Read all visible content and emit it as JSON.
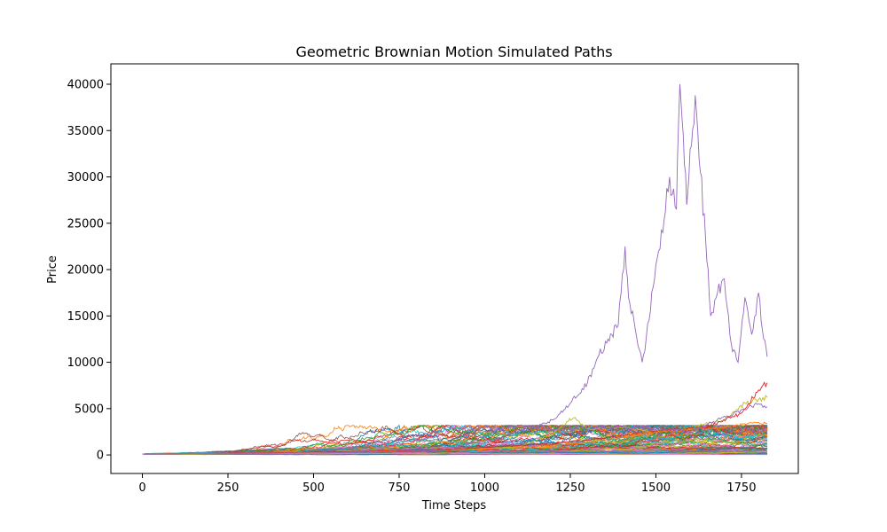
{
  "chart_data": {
    "type": "line",
    "title": "Geometric Brownian Motion Simulated Paths",
    "xlabel": "Time Steps",
    "ylabel": "Price",
    "xlim": [
      -92,
      1916
    ],
    "ylim": [
      -2000,
      42200
    ],
    "xticks": [
      0,
      250,
      500,
      750,
      1000,
      1250,
      1500,
      1750
    ],
    "yticks": [
      0,
      5000,
      10000,
      15000,
      20000,
      25000,
      30000,
      35000,
      40000
    ],
    "grid": false,
    "legend": "none",
    "series_colors": [
      "#1f77b4",
      "#ff7f0e",
      "#2ca02c",
      "#d62728",
      "#9467bd",
      "#8c564b",
      "#e377c2",
      "#7f7f7f",
      "#bcbd22",
      "#17becf"
    ],
    "num_paths": 100,
    "num_steps": 1825,
    "start_value": 100,
    "highlighted_paths": [
      {
        "color": "#9467bd",
        "x": [
          0,
          150,
          300,
          450,
          600,
          750,
          900,
          1000,
          1050,
          1100,
          1150,
          1200,
          1250,
          1300,
          1330,
          1360,
          1390,
          1410,
          1420,
          1440,
          1460,
          1480,
          1500,
          1520,
          1540,
          1560,
          1570,
          1580,
          1590,
          1600,
          1615,
          1630,
          1645,
          1660,
          1680,
          1700,
          1720,
          1740,
          1760,
          1780,
          1800,
          1815,
          1825
        ],
        "y": [
          100,
          180,
          250,
          320,
          380,
          520,
          800,
          1500,
          1900,
          2600,
          3000,
          3800,
          5600,
          7800,
          10500,
          12500,
          14000,
          22500,
          17000,
          13500,
          10000,
          14500,
          20500,
          24000,
          30000,
          26500,
          40000,
          34500,
          27000,
          33000,
          38800,
          30500,
          23500,
          15000,
          17500,
          19000,
          12000,
          10000,
          17000,
          13000,
          17500,
          12500,
          10600
        ]
      },
      {
        "color": "#bcbd22",
        "x": [
          0,
          300,
          600,
          900,
          1100,
          1200,
          1240,
          1260,
          1300,
          1400,
          1500,
          1600,
          1700,
          1760,
          1800,
          1825
        ],
        "y": [
          100,
          180,
          300,
          500,
          900,
          2200,
          3600,
          4000,
          2800,
          3000,
          2500,
          3000,
          3800,
          5600,
          6000,
          6200
        ]
      },
      {
        "color": "#d62728",
        "x": [
          0,
          300,
          600,
          900,
          1100,
          1300,
          1500,
          1650,
          1750,
          1800,
          1825
        ],
        "y": [
          100,
          200,
          350,
          600,
          1000,
          1600,
          2600,
          3000,
          4500,
          7000,
          7800
        ]
      },
      {
        "color": "#ff7f0e",
        "x": [
          0,
          300,
          600,
          900,
          1100,
          1300,
          1500,
          1700,
          1800,
          1825
        ],
        "y": [
          100,
          170,
          280,
          500,
          800,
          1300,
          2500,
          3000,
          3500,
          3400
        ]
      },
      {
        "color": "#9467bd",
        "x": [
          0,
          300,
          600,
          900,
          1050,
          1100,
          1200,
          1400,
          1600,
          1800,
          1825
        ],
        "y": [
          100,
          160,
          250,
          500,
          2800,
          3200,
          2700,
          3000,
          2600,
          5500,
          5200
        ]
      }
    ]
  }
}
